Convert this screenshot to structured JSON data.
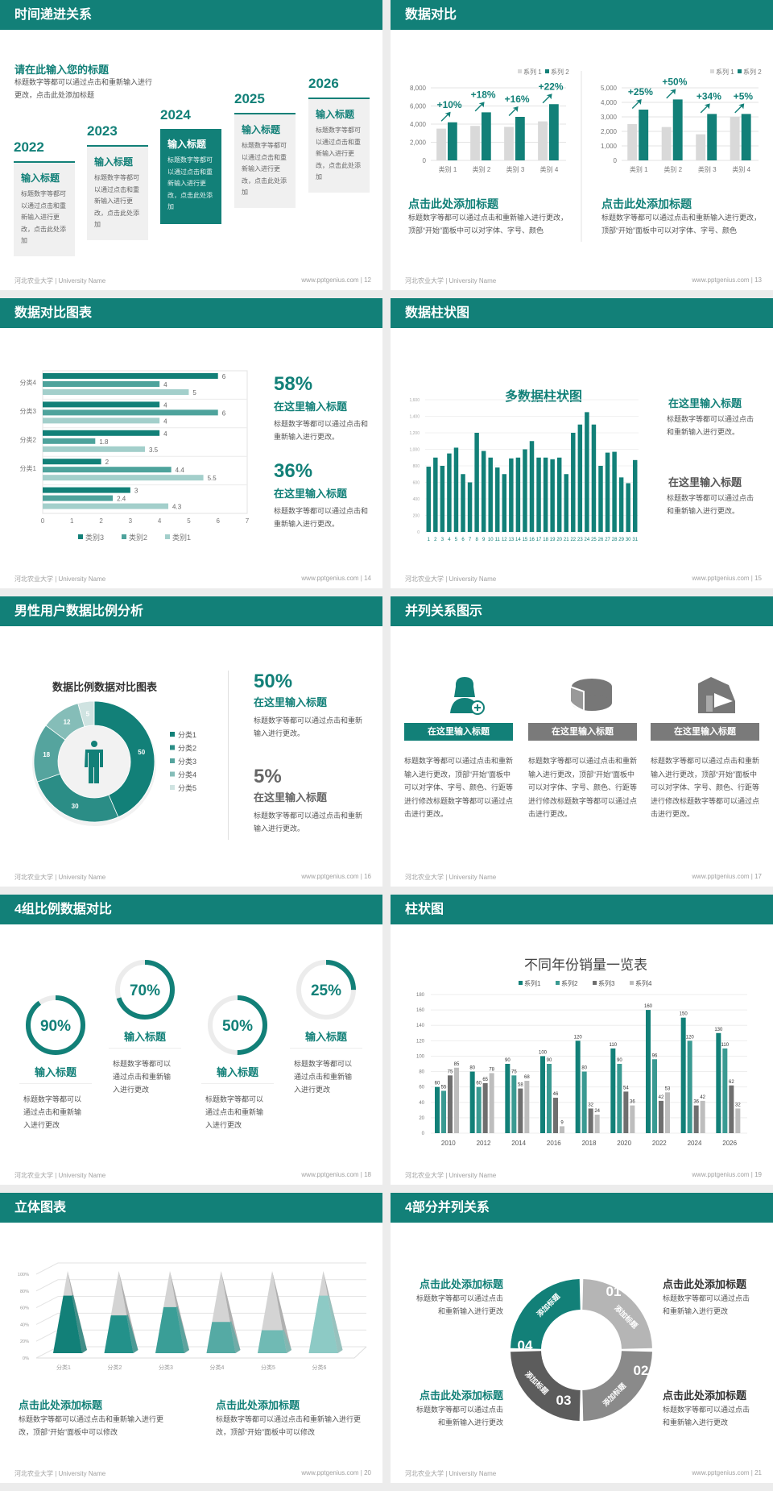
{
  "footer": {
    "left": "河北农业大学 | University Name",
    "site": "www.pptgenius.com  |"
  },
  "colors": {
    "teal": "#128078",
    "teal2": "#3a9a92",
    "grey_dark": "#6f6f6f",
    "grey_light": "#bdbdbd"
  },
  "s12": {
    "page": "12",
    "title": "时间递进关系",
    "heading": "请在此输入您的标题",
    "desc": "标题数字等都可以通过点击和重新输入进行更改，点击此处添加标题",
    "steps": [
      {
        "year": "2022",
        "title": "输入标题",
        "text": "标题数字等都可以通过点击和重新输入进行更改，点击此处添加"
      },
      {
        "year": "2023",
        "title": "输入标题",
        "text": "标题数字等都可以通过点击和重新输入进行更改，点击此处添加"
      },
      {
        "year": "2024",
        "title": "输入标题",
        "text": "标题数字等都可以通过点击和重新输入进行更改，点击此处添加"
      },
      {
        "year": "2025",
        "title": "输入标题",
        "text": "标题数字等都可以通过点击和重新输入进行更改，点击此处添加"
      },
      {
        "year": "2026",
        "title": "输入标题",
        "text": "标题数字等都可以通过点击和重新输入进行更改，点击此处添加"
      }
    ]
  },
  "s13": {
    "page": "13",
    "title": "数据对比",
    "blocks": [
      {
        "title": "点击此处添加标题",
        "text": "标题数字等都可以通过点击和重新输入进行更改，顶部“开始”面板中可以对字体、字号、颜色"
      },
      {
        "title": "点击此处添加标题",
        "text": "标题数字等都可以通过点击和重新输入进行更改，顶部“开始”面板中可以对字体、字号、颜色"
      }
    ]
  },
  "s14": {
    "page": "14",
    "title": "数据对比图表",
    "stats": [
      {
        "value": "58%",
        "title": "在这里输入标题",
        "text": "标题数字等都可以通过点击和重新输入进行更改。"
      },
      {
        "value": "36%",
        "title": "在这里输入标题",
        "text": "标题数字等都可以通过点击和重新输入进行更改。"
      }
    ]
  },
  "s15": {
    "page": "15",
    "title": "数据柱状图",
    "blocks": [
      {
        "title": "在这里输入标题",
        "text": "标题数字等都可以通过点击和重新输入进行更改。"
      },
      {
        "title": "在这里输入标题",
        "text": "标题数字等都可以通过点击和重新输入进行更改。"
      }
    ]
  },
  "s16": {
    "page": "16",
    "title": "男性用户数据比例分析",
    "stats": [
      {
        "value": "50%",
        "title": "在这里输入标题",
        "text": "标题数字等都可以通过点击和重新输入进行更改。"
      },
      {
        "value": "5%",
        "title": "在这里输入标题",
        "text": "标题数字等都可以通过点击和重新输入进行更改。"
      }
    ]
  },
  "s17": {
    "page": "17",
    "title": "并列关系图示",
    "items": [
      {
        "icon": "user-add-icon",
        "label": "在这里输入标题",
        "text": "标题数字等都可以通过点击和重新输入进行更改，顶部“开始”面板中可以对字体、字号、颜色、行距等进行修改标题数字等都可以通过点击进行更改。"
      },
      {
        "icon": "pie-3d-icon",
        "label": "在这里输入标题",
        "text": "标题数字等都可以通过点击和重新输入进行更改，顶部“开始”面板中可以对字体、字号、颜色、行距等进行修改标题数字等都可以通过点击进行更改。"
      },
      {
        "icon": "store-icon",
        "label": "在这里输入标题",
        "text": "标题数字等都可以通过点击和重新输入进行更改，顶部“开始”面板中可以对字体、字号、颜色、行距等进行修改标题数字等都可以通过点击进行更改。"
      }
    ]
  },
  "s18": {
    "page": "18",
    "title": "4组比例数据对比",
    "rings": [
      {
        "value": "90%",
        "pct": 90,
        "title": "输入标题",
        "text": "标题数字等都可以通过点击和重新输入进行更改"
      },
      {
        "value": "70%",
        "pct": 70,
        "title": "输入标题",
        "text": "标题数字等都可以通过点击和重新输入进行更改"
      },
      {
        "value": "50%",
        "pct": 50,
        "title": "输入标题",
        "text": "标题数字等都可以通过点击和重新输入进行更改"
      },
      {
        "value": "25%",
        "pct": 25,
        "title": "输入标题",
        "text": "标题数字等都可以通过点击和重新输入进行更改"
      }
    ]
  },
  "s19": {
    "page": "19",
    "title": "柱状图"
  },
  "s20": {
    "page": "20",
    "title": "立体图表",
    "blocks": [
      {
        "title": "点击此处添加标题",
        "text": "标题数字等都可以通过点击和重新输入进行更改，顶部“开始”面板中可以修改"
      },
      {
        "title": "点击此处添加标题",
        "text": "标题数字等都可以通过点击和重新输入进行更改，顶部“开始”面板中可以修改"
      }
    ]
  },
  "s21": {
    "page": "21",
    "title": "4部分并列关系",
    "segments": [
      {
        "num": "01",
        "label": "添加标题"
      },
      {
        "num": "02",
        "label": "添加标题"
      },
      {
        "num": "03",
        "label": "添加标题"
      },
      {
        "num": "04",
        "label": "添加标题"
      }
    ],
    "blocks": [
      {
        "title": "点击此处添加标题",
        "text": "标题数字等都可以通过点击和重新输入进行更改"
      },
      {
        "title": "点击此处添加标题",
        "text": "标题数字等都可以通过点击和重新输入进行更改"
      },
      {
        "title": "点击此处添加标题",
        "text": "标题数字等都可以通过点击和重新输入进行更改"
      },
      {
        "title": "点击此处添加标题",
        "text": "标题数字等都可以通过点击和重新输入进行更改"
      }
    ]
  },
  "chart_data": [
    {
      "id": "s13a",
      "type": "bar",
      "categories": [
        "类别 1",
        "类别 2",
        "类别 3",
        "类别 4"
      ],
      "ylim": [
        0,
        8000
      ],
      "yticks": [
        "0",
        "2,000",
        "4,000",
        "6,000",
        "8,000"
      ],
      "legend": "top-right",
      "series": [
        {
          "name": "系列 1",
          "values": [
            3500,
            3800,
            3700,
            4300
          ]
        },
        {
          "name": "系列 2",
          "values": [
            4200,
            5300,
            4800,
            6200
          ]
        }
      ],
      "annotations": [
        "+10%",
        "+18%",
        "+16%",
        "+22%"
      ]
    },
    {
      "id": "s13b",
      "type": "bar",
      "categories": [
        "类别 1",
        "类别 2",
        "类别 3",
        "类别 4"
      ],
      "ylim": [
        0,
        5000
      ],
      "yticks": [
        "0",
        "1,000",
        "2,000",
        "3,000",
        "4,000",
        "5,000"
      ],
      "legend": "top-right",
      "series": [
        {
          "name": "系列 1",
          "values": [
            2500,
            2300,
            1800,
            3000
          ]
        },
        {
          "name": "系列 2",
          "values": [
            3500,
            4200,
            3200,
            3200
          ]
        }
      ],
      "annotations": [
        "+25%",
        "+50%",
        "+34%",
        "+5%"
      ]
    },
    {
      "id": "s14",
      "type": "bar",
      "orientation": "horizontal",
      "categories": [
        "分类4",
        "分类3",
        "分类2",
        "分类1",
        ""
      ],
      "xlim": [
        0,
        7
      ],
      "xticks": [
        "0",
        "1",
        "2",
        "3",
        "4",
        "5",
        "6",
        "7"
      ],
      "legend": "bottom",
      "series": [
        {
          "name": "类别3",
          "values": [
            6,
            4,
            4,
            2,
            3
          ]
        },
        {
          "name": "类别2",
          "values": [
            4,
            6,
            1.8,
            4.4,
            2.4
          ]
        },
        {
          "name": "类别1",
          "values": [
            5,
            4,
            3.5,
            5.5,
            4.3
          ]
        }
      ]
    },
    {
      "id": "s15",
      "type": "bar",
      "title": "多数据柱状图",
      "ylim": [
        0,
        1600
      ],
      "yticks": [
        "0",
        "200",
        "400",
        "600",
        "800",
        "1,000",
        "1,200",
        "1,400",
        "1,600"
      ],
      "categories": [
        "1",
        "2",
        "3",
        "4",
        "5",
        "6",
        "7",
        "8",
        "9",
        "10",
        "11",
        "12",
        "13",
        "14",
        "15",
        "16",
        "17",
        "18",
        "19",
        "20",
        "21",
        "22",
        "23",
        "24",
        "25",
        "26",
        "27",
        "28",
        "29",
        "30",
        "31"
      ],
      "values": [
        790,
        900,
        800,
        950,
        1020,
        700,
        600,
        1200,
        980,
        900,
        780,
        700,
        890,
        900,
        1000,
        1100,
        900,
        900,
        880,
        900,
        700,
        1200,
        1300,
        1450,
        1300,
        800,
        960,
        970,
        660,
        590,
        870
      ]
    },
    {
      "id": "s16",
      "type": "pie",
      "title": "数据比例数据对比图表",
      "donut": true,
      "legend": "right",
      "categories": [
        "分类1",
        "分类2",
        "分类3",
        "分类4",
        "分类5"
      ],
      "values": [
        50,
        30,
        18,
        12,
        5
      ]
    },
    {
      "id": "s19",
      "type": "bar",
      "title": "不同年份销量一览表",
      "ylim": [
        0,
        180
      ],
      "yticks": [
        "0",
        "20",
        "40",
        "60",
        "80",
        "100",
        "120",
        "140",
        "160",
        "180"
      ],
      "legend": "top",
      "categories": [
        "2010",
        "2012",
        "2014",
        "2016",
        "2018",
        "2020",
        "2022",
        "2024",
        "2026"
      ],
      "series": [
        {
          "name": "系列1",
          "values": [
            60,
            80,
            90,
            100,
            120,
            110,
            160,
            150,
            130
          ]
        },
        {
          "name": "系列2",
          "values": [
            55,
            60,
            75,
            90,
            80,
            90,
            96,
            120,
            110
          ]
        },
        {
          "name": "系列3",
          "values": [
            75,
            65,
            58,
            46,
            32,
            54,
            42,
            36,
            62
          ]
        },
        {
          "name": "系列4",
          "values": [
            85,
            78,
            68,
            9,
            24,
            36,
            53,
            42,
            32
          ]
        }
      ]
    },
    {
      "id": "s20",
      "type": "bar",
      "style": "3d-pyramid",
      "ylim": [
        0,
        1
      ],
      "yticks": [
        "0%",
        "20%",
        "40%",
        "60%",
        "80%",
        "100%"
      ],
      "categories": [
        "分类1",
        "分类2",
        "分类3",
        "分类4",
        "分类5",
        "分类6"
      ],
      "values": [
        0.7,
        0.46,
        0.56,
        0.38,
        0.28,
        0.7
      ]
    }
  ]
}
